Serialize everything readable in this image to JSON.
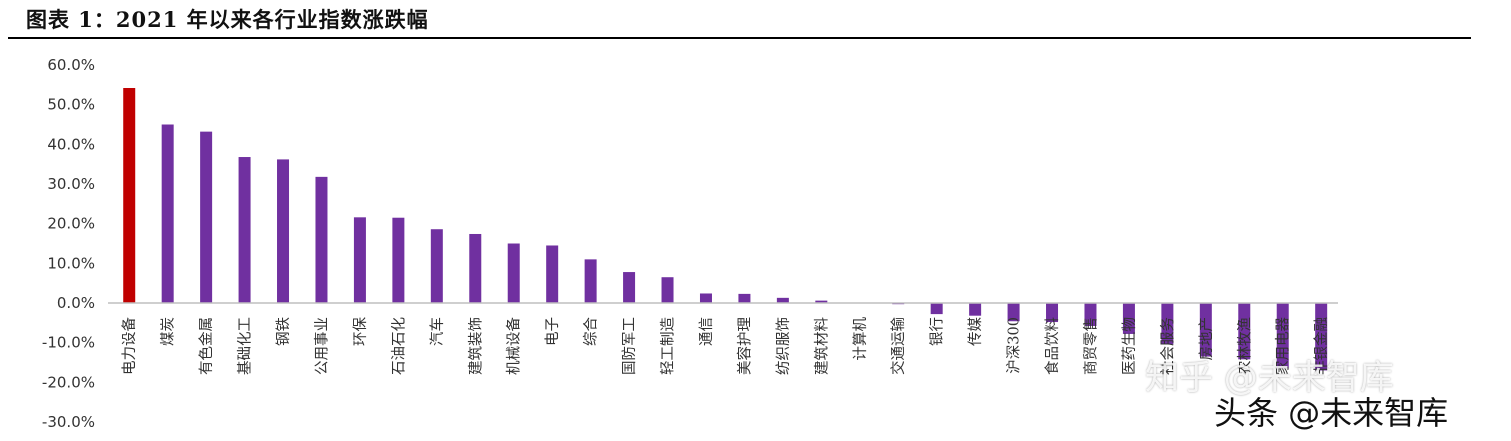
{
  "title": "图表 1：2021 年以来各行业指数涨跌幅",
  "watermarks": {
    "zhihu": "知乎 @未来智库",
    "toutiao": "头条 @未来智库"
  },
  "chart_data": {
    "type": "bar",
    "title": "图表 1：2021 年以来各行业指数涨跌幅",
    "xlabel": "",
    "ylabel": "",
    "ylim": [
      -30,
      60
    ],
    "yticks": [
      60,
      50,
      40,
      30,
      20,
      10,
      0,
      -10,
      -20,
      -30
    ],
    "ytick_labels": [
      "60.0%",
      "50.0%",
      "40.0%",
      "30.0%",
      "20.0%",
      "10.0%",
      "0.0%",
      "-10.0%",
      "-20.0%",
      "-30.0%"
    ],
    "grid": false,
    "legend": "none",
    "colors": {
      "highlight": "#C00000",
      "default": "#7030A0"
    },
    "categories": [
      "电力设备",
      "煤炭",
      "有色金属",
      "基础化工",
      "钢铁",
      "公用事业",
      "环保",
      "石油石化",
      "汽车",
      "建筑装饰",
      "机械设备",
      "电子",
      "综合",
      "国防军工",
      "轻工制造",
      "通信",
      "美容护理",
      "纺织服饰",
      "建筑材料",
      "计算机",
      "交通运输",
      "银行",
      "传媒",
      "沪深300",
      "食品饮料",
      "商贸零售",
      "医药生物",
      "社会服务",
      "房地产",
      "农林牧渔",
      "家用电器",
      "非银金融"
    ],
    "values": [
      54.2,
      45.0,
      43.2,
      36.8,
      36.2,
      31.8,
      21.6,
      21.5,
      18.6,
      17.4,
      15.0,
      14.5,
      11.0,
      7.8,
      6.5,
      2.4,
      2.3,
      1.3,
      0.6,
      0.0,
      -0.3,
      -2.8,
      -3.2,
      -4.6,
      -4.8,
      -5.8,
      -7.8,
      -10.4,
      -13.5,
      -14.2,
      -16.5,
      -17.0
    ],
    "highlight_index": 0
  }
}
